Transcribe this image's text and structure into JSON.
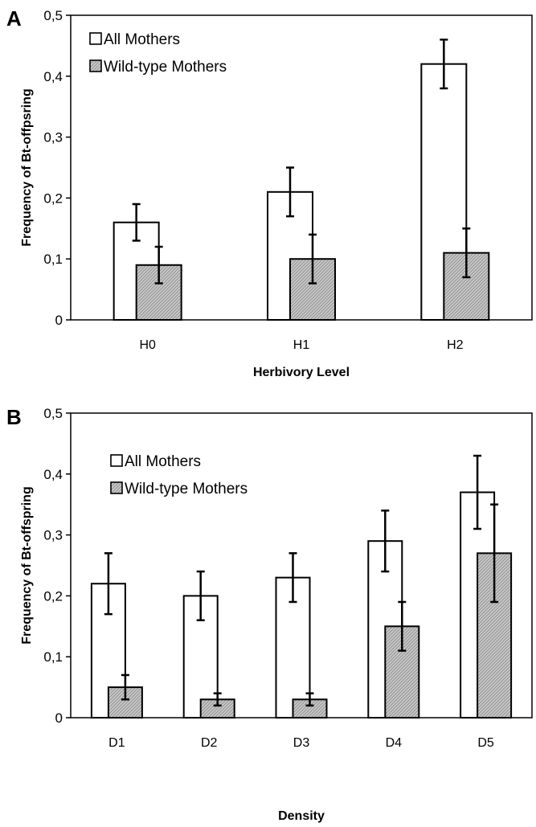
{
  "chart_data": [
    {
      "panel": "A",
      "type": "bar",
      "xlabel": "Herbivory Level",
      "ylabel": "Frequency of  Bt-offpsring",
      "ylim": [
        0,
        0.5
      ],
      "yticks": [
        "0",
        "0,1",
        "0,2",
        "0,3",
        "0,4",
        "0,5"
      ],
      "categories": [
        "H0",
        "H1",
        "H2"
      ],
      "legend_position": "top-left",
      "series": [
        {
          "name": "All Mothers",
          "fill": "#ffffff",
          "values": [
            0.16,
            0.21,
            0.42
          ],
          "err_low": [
            0.13,
            0.17,
            0.38
          ],
          "err_high": [
            0.19,
            0.25,
            0.46
          ]
        },
        {
          "name": "Wild-type Mothers",
          "fill": "#bdbdbd",
          "values": [
            0.09,
            0.1,
            0.11
          ],
          "err_low": [
            0.06,
            0.06,
            0.07
          ],
          "err_high": [
            0.12,
            0.14,
            0.15
          ]
        }
      ]
    },
    {
      "panel": "B",
      "type": "bar",
      "xlabel": "Density",
      "ylabel": "Frequency of  Bt-offspring",
      "ylim": [
        0,
        0.5
      ],
      "yticks": [
        "0",
        "0,1",
        "0,2",
        "0,3",
        "0,4",
        "0,5"
      ],
      "categories": [
        "D1",
        "D2",
        "D3",
        "D4",
        "D5"
      ],
      "legend_position": "top-left",
      "series": [
        {
          "name": "All Mothers",
          "fill": "#ffffff",
          "values": [
            0.22,
            0.2,
            0.23,
            0.29,
            0.37
          ],
          "err_low": [
            0.17,
            0.16,
            0.19,
            0.24,
            0.31
          ],
          "err_high": [
            0.27,
            0.24,
            0.27,
            0.34,
            0.43
          ]
        },
        {
          "name": "Wild-type Mothers",
          "fill": "#bdbdbd",
          "values": [
            0.05,
            0.03,
            0.03,
            0.15,
            0.27
          ],
          "err_low": [
            0.03,
            0.02,
            0.02,
            0.11,
            0.19
          ],
          "err_high": [
            0.07,
            0.04,
            0.04,
            0.19,
            0.35
          ]
        }
      ]
    }
  ]
}
